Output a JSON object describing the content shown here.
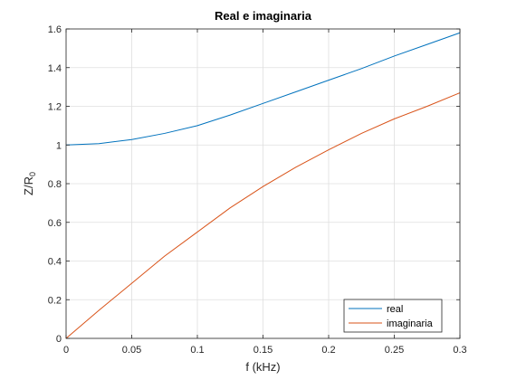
{
  "chart_data": {
    "type": "line",
    "title": "Real e imaginaria",
    "xlabel": "f (kHz)",
    "ylabel_main": "Z/R",
    "ylabel_sub": "0",
    "xlim": [
      0,
      0.3
    ],
    "ylim": [
      0,
      1.6
    ],
    "x_ticks": [
      0,
      0.05,
      0.1,
      0.15,
      0.2,
      0.25,
      0.3
    ],
    "x_tick_labels": [
      "0",
      "0.05",
      "0.1",
      "0.15",
      "0.2",
      "0.25",
      "0.3"
    ],
    "y_ticks": [
      0,
      0.2,
      0.4,
      0.6,
      0.8,
      1.0,
      1.2,
      1.4,
      1.6
    ],
    "y_tick_labels": [
      "0",
      "0.2",
      "0.4",
      "0.6",
      "0.8",
      "1",
      "1.2",
      "1.4",
      "1.6"
    ],
    "grid": true,
    "legend_position": "bottom-right",
    "x": [
      0,
      0.025,
      0.05,
      0.075,
      0.1,
      0.125,
      0.15,
      0.175,
      0.2,
      0.225,
      0.25,
      0.275,
      0.3
    ],
    "series": [
      {
        "name": "real",
        "color": "#0072BD",
        "values": [
          1.0,
          1.007,
          1.028,
          1.06,
          1.1,
          1.155,
          1.215,
          1.275,
          1.335,
          1.395,
          1.46,
          1.52,
          1.58
        ]
      },
      {
        "name": "imaginaria",
        "color": "#D95319",
        "values": [
          0.0,
          0.145,
          0.285,
          0.425,
          0.55,
          0.675,
          0.785,
          0.885,
          0.975,
          1.06,
          1.135,
          1.2,
          1.27
        ]
      }
    ]
  }
}
